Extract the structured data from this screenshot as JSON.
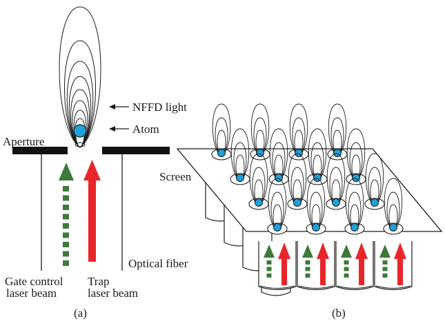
{
  "panel_a": {
    "label_nffd": "NFFD light",
    "label_atom": "Atom",
    "label_aperture": "Aperture",
    "label_fiber": "Optical fiber",
    "label_gate": [
      "Gate control",
      "laser beam"
    ],
    "label_trap": [
      "Trap",
      "laser beam"
    ],
    "caption": "(a)"
  },
  "panel_b": {
    "label_screen": "Screen",
    "caption": "(b)",
    "grid": {
      "rows": 4,
      "cols": 4
    }
  },
  "colors": {
    "atom": "#1fa0d8",
    "gate_beam": "#3c7a3a",
    "trap_beam": "#e8262a",
    "aperture": "#111111",
    "line": "#1a1a1a"
  }
}
